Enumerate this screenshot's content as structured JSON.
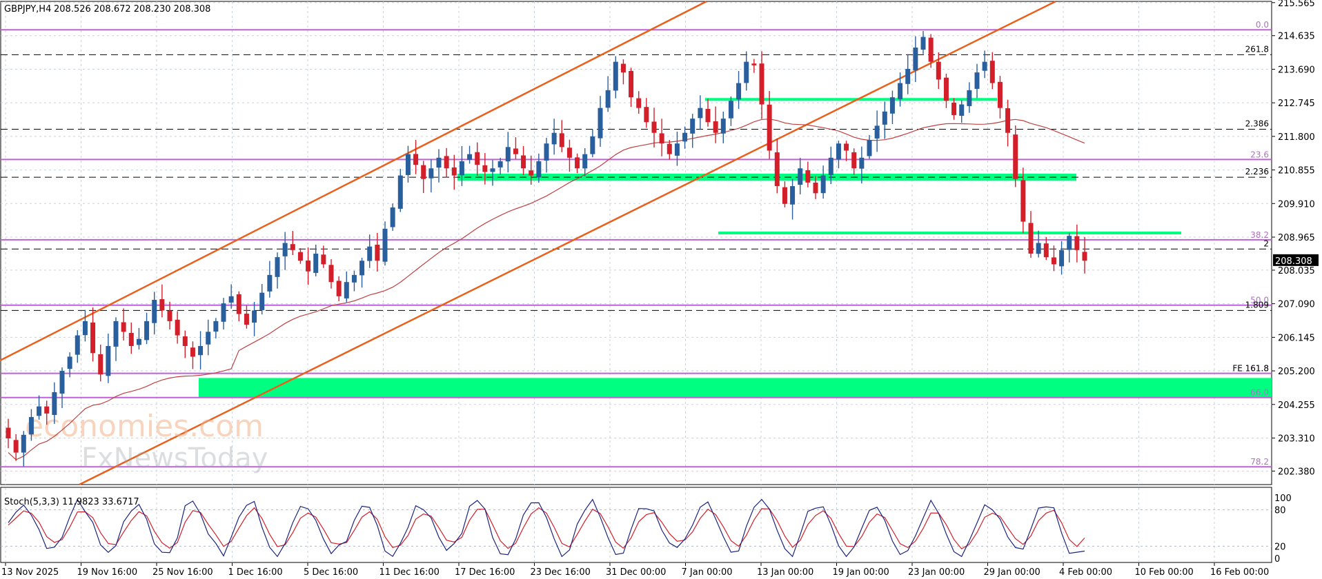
{
  "header": {
    "symbol": "GBPJPY,H4",
    "ohlc": "208.526 208.672 208.230 208.308"
  },
  "watermark": {
    "line1": "economies.com",
    "line2": "FxNewsToday"
  },
  "colors": {
    "fib": "#c060d8",
    "channel": "#e8601c",
    "zone": "#00ff80",
    "ma": "#c04040",
    "bull": "#2a5f9e",
    "bear": "#d21f2a",
    "stoch_main": "#1a237e",
    "stoch_signal": "#d21f2a"
  },
  "chart_data": [
    {
      "type": "candlestick",
      "title": "GBPJPY,H4",
      "ylim": [
        202.0,
        215.6
      ],
      "price_ticks": [
        "215.565",
        "214.635",
        "213.690",
        "212.745",
        "211.800",
        "210.855",
        "209.910",
        "208.965",
        "208.035",
        "207.090",
        "206.145",
        "205.200",
        "204.255",
        "203.310",
        "202.380"
      ],
      "time_ticks": [
        "13 Nov 2025",
        "19 Nov 16:00",
        "25 Nov 16:00",
        "1 Dec 16:00",
        "5 Dec 16:00",
        "11 Dec 16:00",
        "17 Dec 16:00",
        "23 Dec 16:00",
        "31 Dec 00:00",
        "7 Jan 00:00",
        "13 Jan 00:00",
        "19 Jan 00:00",
        "23 Jan 00:00",
        "29 Jan 00:00",
        "4 Feb 00:00",
        "10 Feb 00:00",
        "16 Feb 00:00"
      ],
      "current_price": "208.308",
      "fib_levels": [
        {
          "label": "0.0",
          "price": 214.8
        },
        {
          "label": "23.6",
          "price": 211.15
        },
        {
          "label": "38.2",
          "price": 208.89
        },
        {
          "label": "50.0",
          "price": 207.05
        },
        {
          "label": "61.8",
          "price": 205.13
        },
        {
          "label": "FE 161.8",
          "price": 205.13
        },
        {
          "label": "66.0",
          "price": 204.45
        },
        {
          "label": "78.2",
          "price": 202.5
        }
      ],
      "extension_levels": [
        {
          "label": "261.8",
          "price": 214.1
        },
        {
          "label": "2.386",
          "price": 212.0
        },
        {
          "label": "2.236",
          "price": 210.65
        },
        {
          "label": "2",
          "price": 208.63
        },
        {
          "label": "1.809",
          "price": 206.9
        }
      ],
      "closes": [
        203.3,
        202.9,
        203.4,
        203.9,
        204.2,
        204.0,
        204.6,
        205.2,
        205.6,
        206.2,
        206.6,
        205.7,
        205.1,
        205.9,
        206.6,
        206.3,
        205.9,
        206.1,
        206.6,
        207.2,
        206.9,
        206.6,
        206.2,
        205.9,
        205.6,
        205.9,
        206.3,
        206.6,
        207.1,
        207.3,
        206.8,
        206.5,
        206.9,
        207.4,
        207.9,
        208.4,
        208.8,
        208.6,
        208.3,
        208.0,
        208.5,
        208.2,
        207.7,
        207.3,
        207.7,
        207.9,
        208.3,
        208.7,
        208.3,
        209.2,
        209.8,
        210.7,
        211.3,
        211.0,
        210.6,
        210.9,
        211.2,
        210.9,
        210.7,
        211.1,
        211.3,
        211.0,
        210.8,
        210.9,
        211.1,
        211.5,
        211.3,
        210.9,
        210.7,
        211.1,
        211.6,
        211.9,
        211.5,
        211.2,
        210.9,
        211.3,
        211.8,
        212.6,
        213.1,
        213.9,
        213.6,
        212.9,
        212.6,
        212.2,
        211.9,
        211.6,
        211.3,
        211.6,
        211.9,
        212.3,
        212.6,
        212.2,
        211.9,
        212.3,
        212.8,
        213.3,
        213.9,
        213.8,
        212.7,
        211.4,
        210.4,
        209.9,
        210.4,
        210.9,
        210.5,
        210.2,
        210.7,
        211.2,
        211.6,
        211.4,
        210.9,
        211.2,
        211.7,
        212.1,
        212.5,
        212.9,
        213.3,
        213.7,
        214.3,
        214.6,
        213.9,
        213.4,
        212.8,
        212.4,
        212.7,
        213.1,
        213.6,
        213.9,
        213.3,
        212.6,
        211.9,
        210.6,
        209.4,
        208.5,
        208.8,
        208.4,
        208.2,
        208.6,
        209.0,
        208.6,
        208.3
      ]
    },
    {
      "type": "line",
      "title": "Stoch(5,3,3) 11.9823 33.6717",
      "ylim": [
        0,
        100
      ],
      "y_ticks": [
        "100",
        "80",
        "20",
        "0"
      ],
      "last_main": 11.9823,
      "last_signal": 33.6717
    }
  ]
}
